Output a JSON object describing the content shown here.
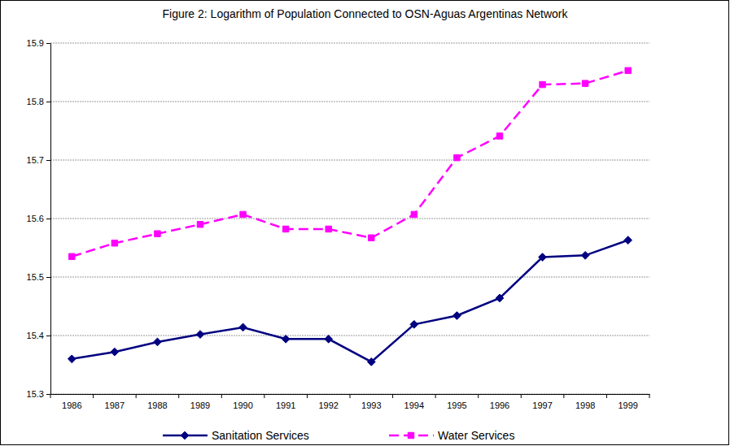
{
  "chart_data": {
    "type": "line",
    "title": "Figure 2: Logarithm of Population Connected to OSN-Aguas Argentinas Network",
    "categories": [
      "1986",
      "1987",
      "1988",
      "1989",
      "1990",
      "1991",
      "1992",
      "1993",
      "1994",
      "1995",
      "1996",
      "1997",
      "1998",
      "1999"
    ],
    "series": [
      {
        "name": "Sanitation Services",
        "color": "#000080",
        "marker": "diamond",
        "line_style": "solid",
        "values": [
          15.36,
          15.372,
          15.389,
          15.402,
          15.414,
          15.394,
          15.394,
          15.355,
          15.419,
          15.434,
          15.464,
          15.534,
          15.537,
          15.563
        ]
      },
      {
        "name": "Water Services",
        "color": "#ff00ff",
        "marker": "square",
        "line_style": "dashed",
        "values": [
          15.535,
          15.558,
          15.574,
          15.59,
          15.607,
          15.582,
          15.582,
          15.567,
          15.607,
          15.704,
          15.741,
          15.829,
          15.831,
          15.853
        ]
      }
    ],
    "ylim": [
      15.3,
      15.9
    ],
    "yticks": [
      15.3,
      15.4,
      15.5,
      15.6,
      15.7,
      15.8,
      15.9
    ],
    "grid": true,
    "legend": "bottom"
  }
}
